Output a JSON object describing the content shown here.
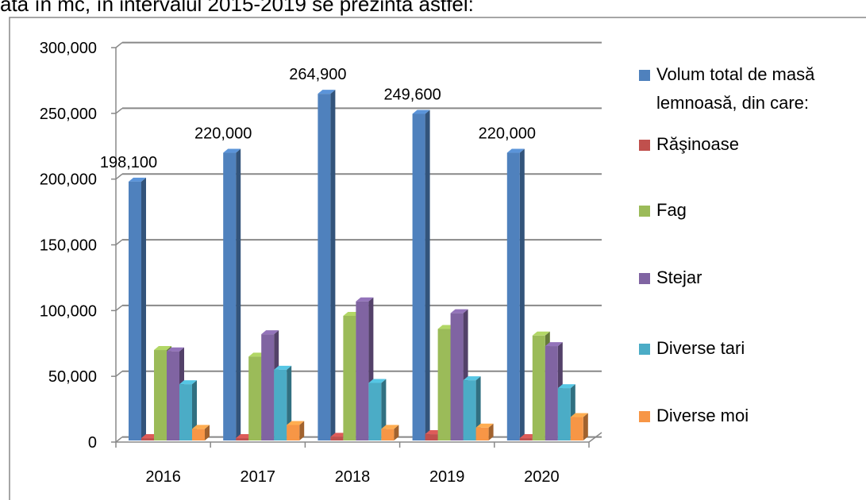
{
  "caption": "ată în mc, în intervalul 2015-2019 se prezintă astfel:",
  "chart_data": {
    "type": "bar3d",
    "categories": [
      "2016",
      "2017",
      "2018",
      "2019",
      "2020"
    ],
    "series": [
      {
        "name": "Volum total de masă lemnoasă, din care:",
        "color": "#4f81bd",
        "values": [
          198100,
          220000,
          264900,
          249600,
          220000
        ],
        "value_labels": [
          "198,100",
          "220,000",
          "264,900",
          "249,600",
          "220,000"
        ]
      },
      {
        "name": "Răşinoase",
        "color": "#c0504d",
        "values": [
          3000,
          3000,
          4000,
          6000,
          3000
        ]
      },
      {
        "name": "Fag",
        "color": "#9bbb59",
        "values": [
          70000,
          65000,
          96000,
          86000,
          81000
        ]
      },
      {
        "name": "Stejar",
        "color": "#8064a2",
        "values": [
          69000,
          82000,
          107000,
          98000,
          73000
        ]
      },
      {
        "name": "Diverse tari",
        "color": "#4bacc6",
        "values": [
          44000,
          55000,
          45000,
          47000,
          41000
        ]
      },
      {
        "name": "Diverse moi",
        "color": "#f79646",
        "values": [
          10000,
          13000,
          10000,
          11000,
          19000
        ]
      }
    ],
    "ylim": [
      0,
      300000
    ],
    "yticks": [
      0,
      {
        "value": 50000,
        "label": "50,000"
      },
      {
        "value": 100000,
        "label": "100,000"
      },
      {
        "value": 150000,
        "label": "150,000"
      },
      {
        "value": 200000,
        "label": "200,000"
      },
      {
        "value": 250000,
        "label": "250,000"
      },
      {
        "value": 300000,
        "label": "300,000"
      }
    ],
    "grid": true,
    "legend": "right"
  }
}
